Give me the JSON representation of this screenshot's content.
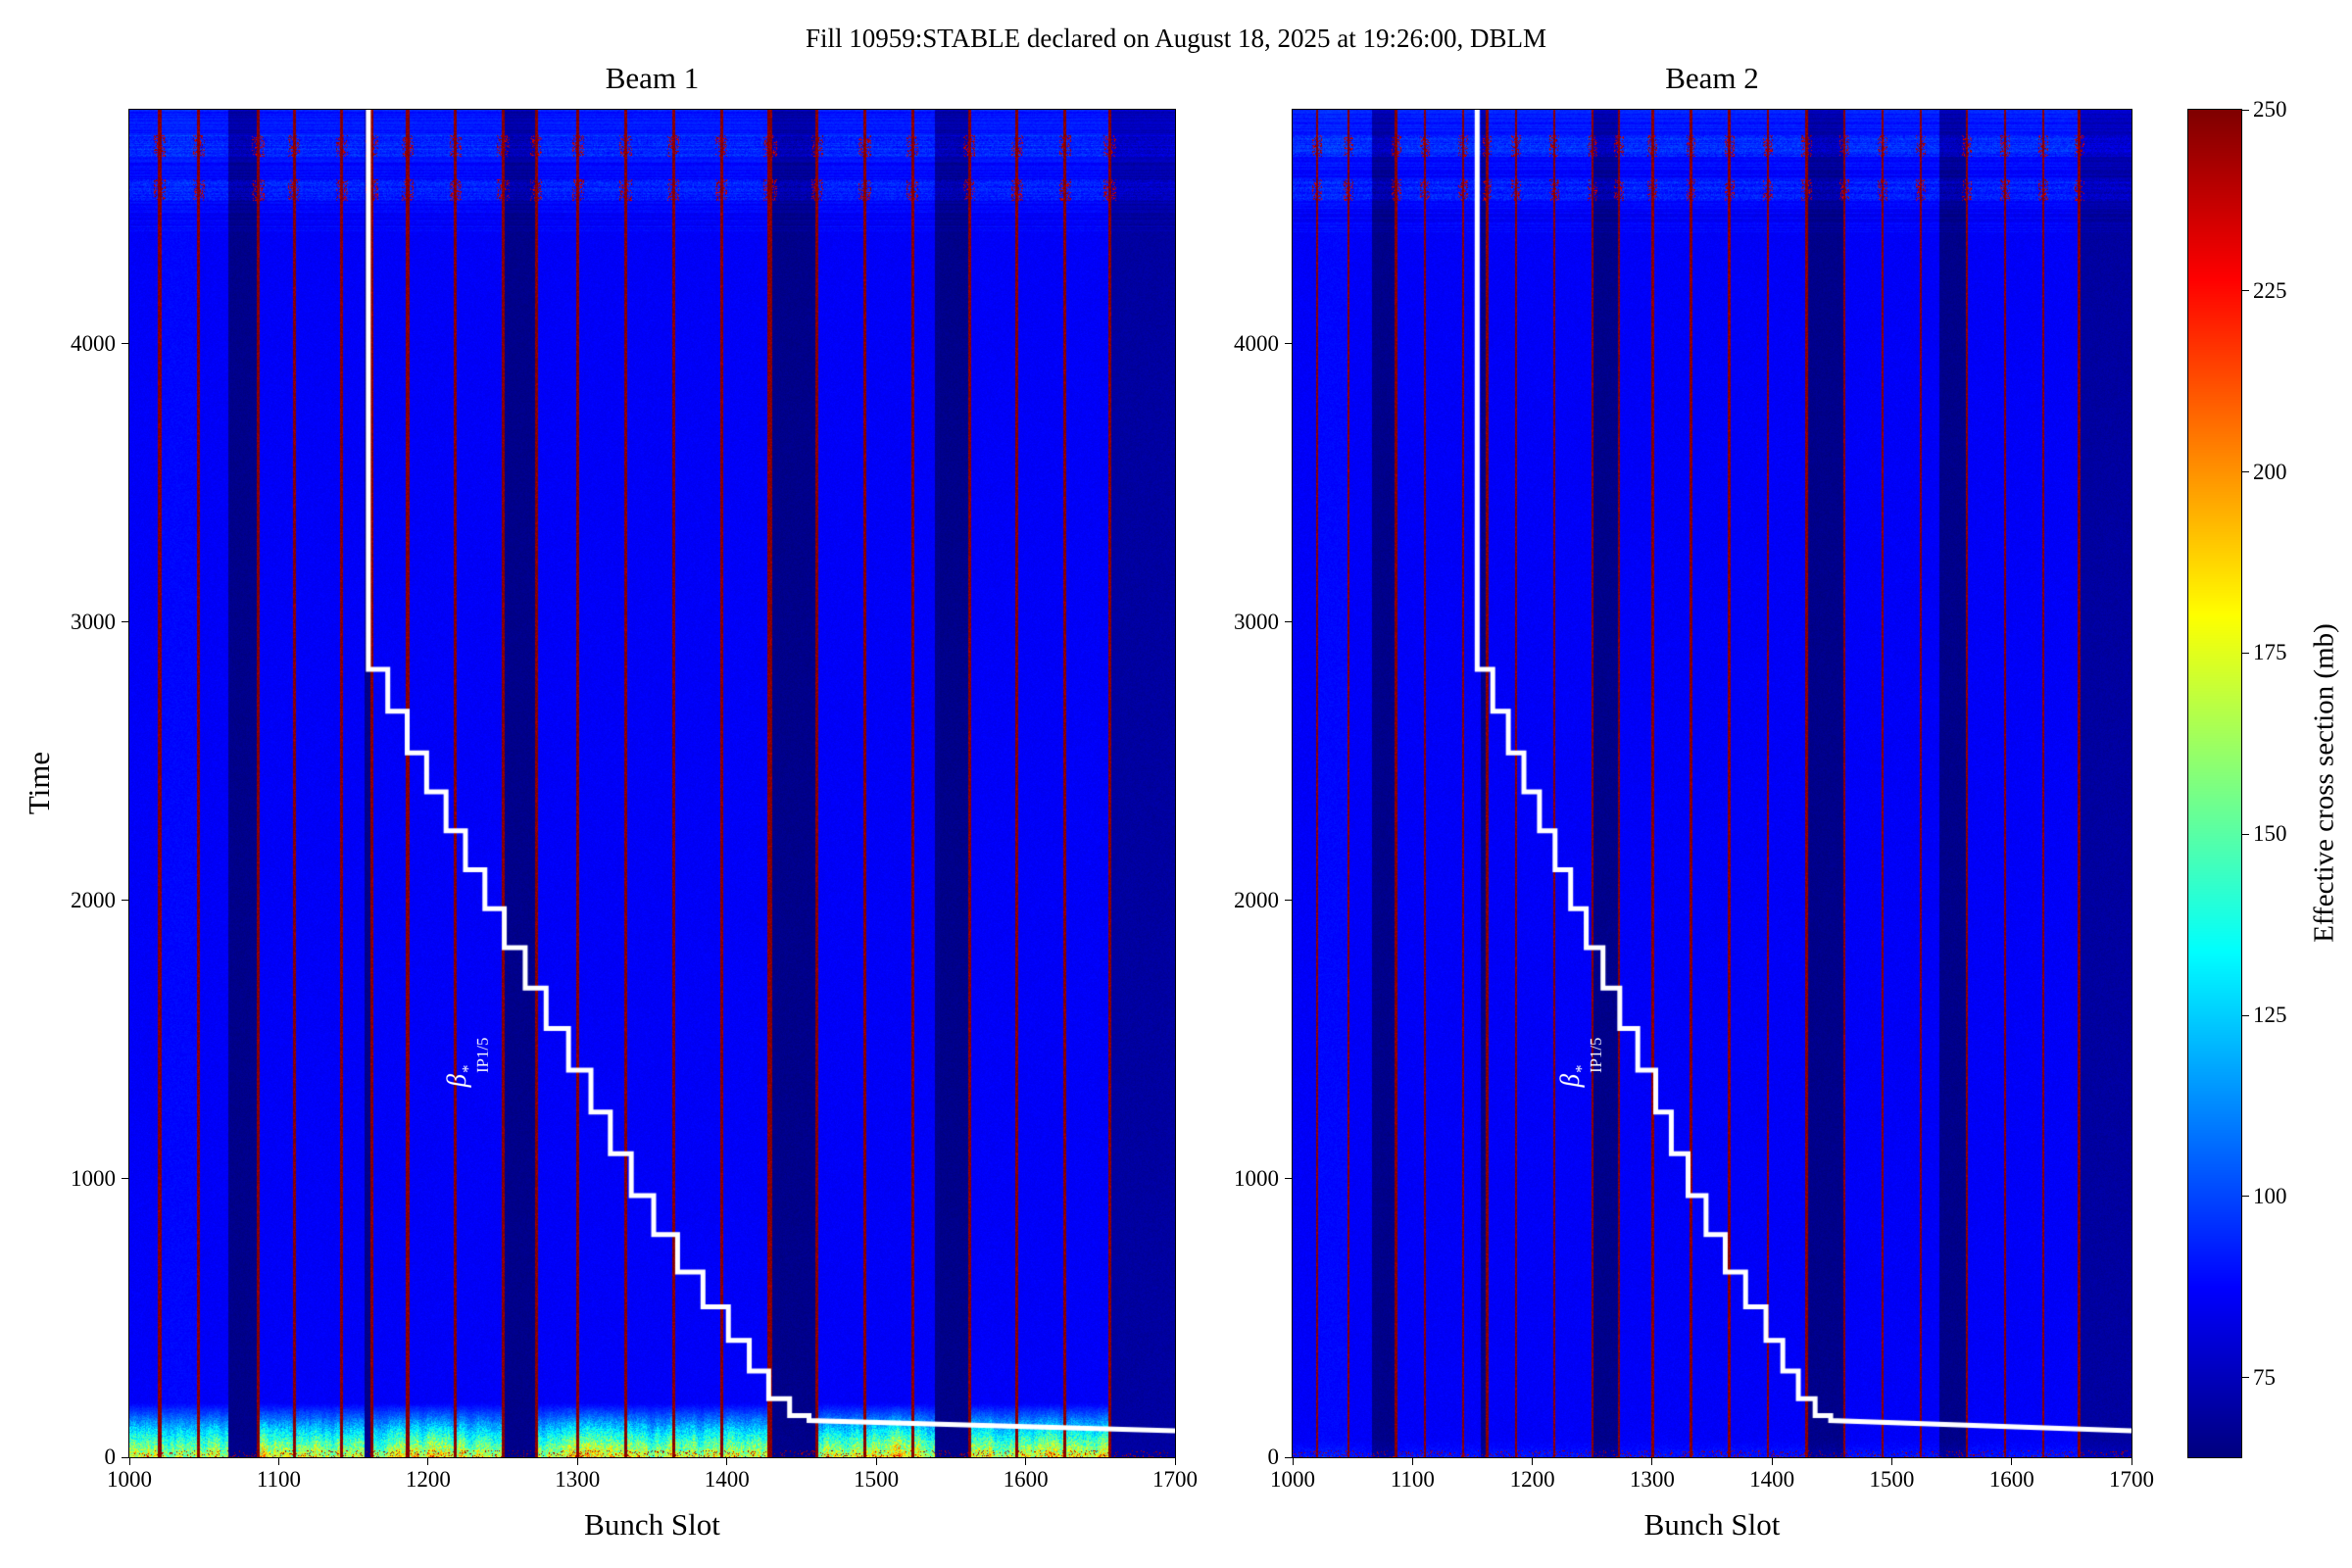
{
  "figure": {
    "title": "Fill 10959:STABLE declared on August 18, 2025 at 19:26:00, DBLM"
  },
  "chart_data": {
    "type": "heatmap",
    "title": "Fill 10959:STABLE declared on August 18, 2025 at 19:26:00, DBLM",
    "colormap": "jet",
    "colorbar": {
      "label": "Effective cross section (mb)",
      "ticks": [
        75,
        100,
        125,
        150,
        175,
        200,
        225,
        250
      ],
      "vmin": 64,
      "vmax": 250
    },
    "subplots": [
      {
        "title": "Beam 1",
        "xlabel": "Bunch Slot",
        "ylabel": "Time",
        "xlim": [
          1000,
          1700
        ],
        "ylim": [
          0,
          4840
        ],
        "xticks": [
          1000,
          1100,
          1200,
          1300,
          1400,
          1500,
          1600,
          1700
        ],
        "yticks": [
          0,
          1000,
          2000,
          3000,
          4000
        ],
        "base_value_mb": 86,
        "dark_band_value_mb": 66,
        "hot_line_value_mb": 250,
        "hot_bottom_band": true,
        "overlay_label": {
          "base": "β",
          "sup": "*",
          "sub": "IP1/5"
        },
        "bands": [
          [
            1000,
            1019,
            86
          ],
          [
            1019,
            1021,
            250
          ],
          [
            1021,
            1045,
            88
          ],
          [
            1045,
            1047,
            250
          ],
          [
            1047,
            1066,
            86
          ],
          [
            1066,
            1085,
            66
          ],
          [
            1085,
            1087,
            250
          ],
          [
            1087,
            1109,
            86
          ],
          [
            1109,
            1111,
            250
          ],
          [
            1111,
            1141,
            86
          ],
          [
            1141,
            1143,
            250
          ],
          [
            1143,
            1157,
            86
          ],
          [
            1157,
            1161,
            66
          ],
          [
            1161,
            1163,
            250
          ],
          [
            1163,
            1185,
            86
          ],
          [
            1185,
            1187,
            250
          ],
          [
            1187,
            1217,
            86
          ],
          [
            1217,
            1219,
            250
          ],
          [
            1219,
            1249,
            86
          ],
          [
            1249,
            1251,
            250
          ],
          [
            1251,
            1271,
            66
          ],
          [
            1271,
            1273,
            250
          ],
          [
            1273,
            1299,
            86
          ],
          [
            1299,
            1301,
            250
          ],
          [
            1301,
            1331,
            86
          ],
          [
            1331,
            1333,
            250
          ],
          [
            1333,
            1363,
            86
          ],
          [
            1363,
            1365,
            250
          ],
          [
            1365,
            1395,
            86
          ],
          [
            1395,
            1397,
            250
          ],
          [
            1397,
            1427,
            86
          ],
          [
            1427,
            1430,
            250
          ],
          [
            1430,
            1459,
            66
          ],
          [
            1459,
            1461,
            250
          ],
          [
            1461,
            1491,
            86
          ],
          [
            1491,
            1493,
            250
          ],
          [
            1493,
            1523,
            86
          ],
          [
            1523,
            1525,
            250
          ],
          [
            1525,
            1539,
            86
          ],
          [
            1539,
            1561,
            66
          ],
          [
            1561,
            1563,
            250
          ],
          [
            1563,
            1593,
            86
          ],
          [
            1593,
            1595,
            250
          ],
          [
            1595,
            1625,
            86
          ],
          [
            1625,
            1627,
            250
          ],
          [
            1627,
            1655,
            86
          ],
          [
            1655,
            1657,
            250
          ],
          [
            1657,
            1700,
            70
          ]
        ],
        "step_line": [
          [
            1160,
            4840
          ],
          [
            1160,
            2830
          ],
          [
            1173,
            2830
          ],
          [
            1173,
            2680
          ],
          [
            1186,
            2680
          ],
          [
            1186,
            2530
          ],
          [
            1199,
            2530
          ],
          [
            1199,
            2390
          ],
          [
            1212,
            2390
          ],
          [
            1212,
            2250
          ],
          [
            1225,
            2250
          ],
          [
            1225,
            2110
          ],
          [
            1238,
            2110
          ],
          [
            1238,
            1970
          ],
          [
            1251,
            1970
          ],
          [
            1251,
            1830
          ],
          [
            1265,
            1830
          ],
          [
            1265,
            1685
          ],
          [
            1279,
            1685
          ],
          [
            1279,
            1540
          ],
          [
            1294,
            1540
          ],
          [
            1294,
            1390
          ],
          [
            1309,
            1390
          ],
          [
            1309,
            1240
          ],
          [
            1322,
            1240
          ],
          [
            1322,
            1090
          ],
          [
            1336,
            1090
          ],
          [
            1336,
            940
          ],
          [
            1351,
            940
          ],
          [
            1351,
            800
          ],
          [
            1367,
            800
          ],
          [
            1367,
            665
          ],
          [
            1384,
            665
          ],
          [
            1384,
            540
          ],
          [
            1401,
            540
          ],
          [
            1401,
            420
          ],
          [
            1415,
            420
          ],
          [
            1415,
            310
          ],
          [
            1428,
            310
          ],
          [
            1428,
            210
          ],
          [
            1442,
            210
          ],
          [
            1442,
            150
          ],
          [
            1455,
            150
          ],
          [
            1455,
            132
          ],
          [
            1700,
            95
          ]
        ]
      },
      {
        "title": "Beam 2",
        "xlabel": "Bunch Slot",
        "ylabel": "",
        "xlim": [
          1000,
          1700
        ],
        "ylim": [
          0,
          4840
        ],
        "xticks": [
          1000,
          1100,
          1200,
          1300,
          1400,
          1500,
          1600,
          1700
        ],
        "yticks": [
          0,
          1000,
          2000,
          3000,
          4000
        ],
        "base_value_mb": 86,
        "dark_band_value_mb": 66,
        "hot_line_value_mb": 250,
        "hot_bottom_band": false,
        "overlay_label": {
          "base": "β",
          "sup": "*",
          "sub": "IP1/5"
        },
        "bands": [
          [
            1000,
            1019,
            86
          ],
          [
            1019,
            1021,
            250
          ],
          [
            1021,
            1045,
            88
          ],
          [
            1045,
            1047,
            250
          ],
          [
            1047,
            1066,
            86
          ],
          [
            1066,
            1085,
            66
          ],
          [
            1085,
            1087,
            250
          ],
          [
            1087,
            1109,
            86
          ],
          [
            1109,
            1111,
            250
          ],
          [
            1111,
            1141,
            86
          ],
          [
            1141,
            1143,
            250
          ],
          [
            1143,
            1157,
            86
          ],
          [
            1157,
            1161,
            66
          ],
          [
            1161,
            1163,
            250
          ],
          [
            1163,
            1185,
            86
          ],
          [
            1185,
            1187,
            250
          ],
          [
            1187,
            1217,
            86
          ],
          [
            1217,
            1219,
            250
          ],
          [
            1219,
            1249,
            86
          ],
          [
            1249,
            1251,
            250
          ],
          [
            1251,
            1271,
            66
          ],
          [
            1271,
            1273,
            250
          ],
          [
            1273,
            1299,
            86
          ],
          [
            1299,
            1301,
            250
          ],
          [
            1301,
            1331,
            86
          ],
          [
            1331,
            1333,
            250
          ],
          [
            1333,
            1363,
            86
          ],
          [
            1363,
            1365,
            250
          ],
          [
            1365,
            1395,
            86
          ],
          [
            1395,
            1397,
            250
          ],
          [
            1397,
            1427,
            86
          ],
          [
            1427,
            1430,
            250
          ],
          [
            1430,
            1459,
            66
          ],
          [
            1459,
            1461,
            250
          ],
          [
            1461,
            1491,
            86
          ],
          [
            1491,
            1493,
            250
          ],
          [
            1493,
            1523,
            86
          ],
          [
            1523,
            1525,
            250
          ],
          [
            1525,
            1539,
            86
          ],
          [
            1539,
            1561,
            66
          ],
          [
            1561,
            1563,
            250
          ],
          [
            1563,
            1593,
            86
          ],
          [
            1593,
            1595,
            250
          ],
          [
            1595,
            1625,
            86
          ],
          [
            1625,
            1627,
            250
          ],
          [
            1627,
            1655,
            86
          ],
          [
            1655,
            1657,
            250
          ],
          [
            1657,
            1700,
            70
          ]
        ],
        "step_line": [
          [
            1154,
            4840
          ],
          [
            1154,
            2830
          ],
          [
            1167,
            2830
          ],
          [
            1167,
            2680
          ],
          [
            1180,
            2680
          ],
          [
            1180,
            2530
          ],
          [
            1193,
            2530
          ],
          [
            1193,
            2390
          ],
          [
            1206,
            2390
          ],
          [
            1206,
            2250
          ],
          [
            1219,
            2250
          ],
          [
            1219,
            2110
          ],
          [
            1232,
            2110
          ],
          [
            1232,
            1970
          ],
          [
            1245,
            1970
          ],
          [
            1245,
            1830
          ],
          [
            1259,
            1830
          ],
          [
            1259,
            1685
          ],
          [
            1273,
            1685
          ],
          [
            1273,
            1540
          ],
          [
            1288,
            1540
          ],
          [
            1288,
            1390
          ],
          [
            1303,
            1390
          ],
          [
            1303,
            1240
          ],
          [
            1316,
            1240
          ],
          [
            1316,
            1090
          ],
          [
            1330,
            1090
          ],
          [
            1330,
            940
          ],
          [
            1345,
            940
          ],
          [
            1345,
            800
          ],
          [
            1361,
            800
          ],
          [
            1361,
            665
          ],
          [
            1378,
            665
          ],
          [
            1378,
            540
          ],
          [
            1395,
            540
          ],
          [
            1395,
            420
          ],
          [
            1409,
            420
          ],
          [
            1409,
            310
          ],
          [
            1422,
            310
          ],
          [
            1422,
            210
          ],
          [
            1436,
            210
          ],
          [
            1436,
            150
          ],
          [
            1449,
            150
          ],
          [
            1449,
            132
          ],
          [
            1700,
            95
          ]
        ]
      }
    ]
  }
}
